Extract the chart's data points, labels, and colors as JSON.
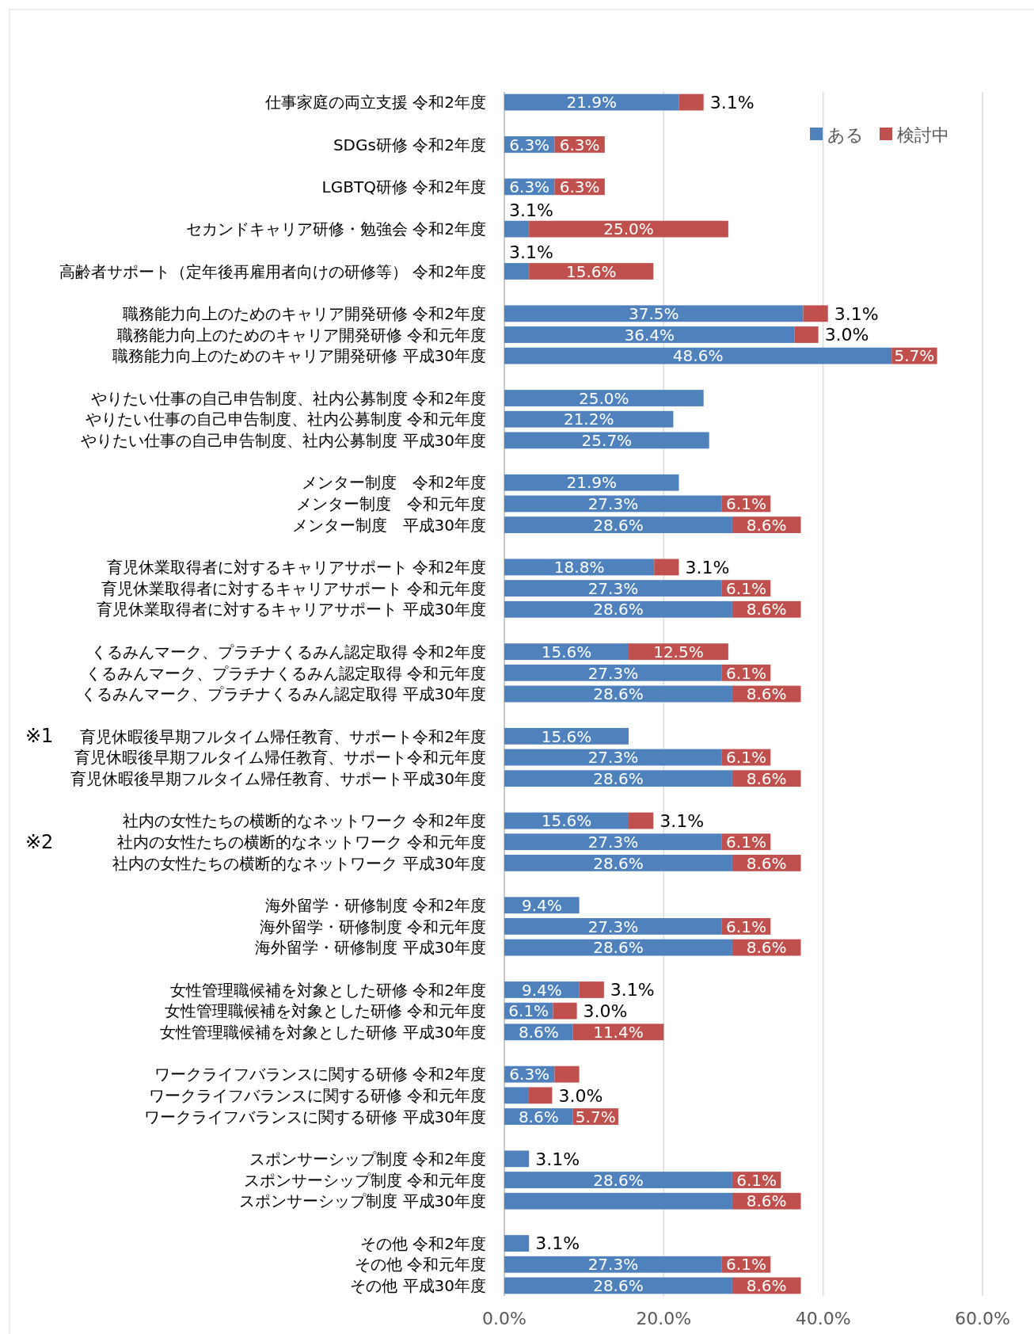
{
  "chart_data": {
    "type": "bar",
    "orientation": "horizontal",
    "stacked": true,
    "categories": [
      "仕事家庭の両立支援 令和2年度",
      null,
      "SDGs研修 令和2年度",
      null,
      "LGBTQ研修 令和2年度",
      null,
      "セカンドキャリア研修・勉強会 令和2年度",
      null,
      "高齢者サポート（定年後再雇用者向けの研修等） 令和2年度",
      null,
      "職務能力向上のためのキャリア開発研修 令和2年度",
      "職務能力向上のためのキャリア開発研修 令和元年度",
      "職務能力向上のためのキャリア開発研修 平成30年度",
      null,
      "やりたい仕事の自己申告制度、社内公募制度 令和2年度",
      "やりたい仕事の自己申告制度、社内公募制度 令和元年度",
      "やりたい仕事の自己申告制度、社内公募制度 平成30年度",
      null,
      "メンター制度　令和2年度",
      "メンター制度　令和元年度",
      "メンター制度　平成30年度",
      null,
      "育児休業取得者に対するキャリアサポート 令和2年度",
      "育児休業取得者に対するキャリアサポート 令和元年度",
      "育児休業取得者に対するキャリアサポート 平成30年度",
      null,
      "くるみんマーク、プラチナくるみん認定取得 令和2年度",
      "くるみんマーク、プラチナくるみん認定取得 令和元年度",
      "くるみんマーク、プラチナくるみん認定取得 平成30年度",
      null,
      "育児休暇後早期フルタイム帰任教育、サポート令和2年度",
      "育児休暇後早期フルタイム帰任教育、サポート令和元年度",
      "育児休暇後早期フルタイム帰任教育、サポート平成30年度",
      null,
      "社内の女性たちの横断的なネットワーク 令和2年度",
      "社内の女性たちの横断的なネットワーク 令和元年度",
      "社内の女性たちの横断的なネットワーク 平成30年度",
      null,
      "海外留学・研修制度 令和2年度",
      "海外留学・研修制度 令和元年度",
      "海外留学・研修制度 平成30年度",
      null,
      "女性管理職候補を対象とした研修 令和2年度",
      "女性管理職候補を対象とした研修 令和元年度",
      "女性管理職候補を対象とした研修 平成30年度",
      null,
      "ワークライフバランスに関する研修 令和2年度",
      "ワークライフバランスに関する研修 令和元年度",
      "ワークライフバランスに関する研修 平成30年度",
      null,
      "スポンサーシップ制度 令和2年度",
      "スポンサーシップ制度 令和元年度",
      "スポンサーシップ制度 平成30年度",
      null,
      "その他 令和2年度",
      "その他 令和元年度",
      "その他 平成30年度"
    ],
    "series": [
      {
        "name": "ある",
        "color": "#4f81bd",
        "values": [
          21.9,
          null,
          6.3,
          null,
          6.3,
          null,
          3.1,
          null,
          3.1,
          null,
          37.5,
          36.4,
          48.6,
          null,
          25.0,
          21.2,
          25.7,
          null,
          21.9,
          27.3,
          28.6,
          null,
          18.8,
          27.3,
          28.6,
          null,
          15.6,
          27.3,
          28.6,
          null,
          15.6,
          27.3,
          28.6,
          null,
          15.6,
          27.3,
          28.6,
          null,
          9.4,
          27.3,
          28.6,
          null,
          9.4,
          6.1,
          8.6,
          null,
          6.3,
          3.0,
          8.6,
          null,
          3.1,
          28.6,
          28.6,
          null,
          3.1,
          27.3,
          28.6
        ],
        "value_labels": [
          "21.9%",
          null,
          "6.3%",
          null,
          "6.3%",
          null,
          "3.1%",
          null,
          "3.1%",
          null,
          "37.5%",
          "36.4%",
          "48.6%",
          null,
          "25.0%",
          "21.2%",
          "25.7%",
          null,
          "21.9%",
          "27.3%",
          "28.6%",
          null,
          "18.8%",
          "27.3%",
          "28.6%",
          null,
          "15.6%",
          "27.3%",
          "28.6%",
          null,
          "15.6%",
          "27.3%",
          "28.6%",
          null,
          "15.6%",
          "27.3%",
          "28.6%",
          null,
          "9.4%",
          "27.3%",
          "28.6%",
          null,
          "9.4%",
          "6.1%",
          "8.6%",
          null,
          "6.3%",
          "3.0%",
          "8.6%",
          null,
          "3.1%",
          "28.6%",
          null,
          null,
          "3.1%",
          "27.3%",
          "28.6%"
        ]
      },
      {
        "name": "検討中",
        "color": "#c0504d",
        "values": [
          3.1,
          null,
          6.3,
          null,
          6.3,
          null,
          25.0,
          null,
          15.6,
          null,
          3.1,
          3.0,
          5.7,
          null,
          null,
          null,
          null,
          null,
          null,
          6.1,
          8.6,
          null,
          3.1,
          6.1,
          8.6,
          null,
          12.5,
          6.1,
          8.6,
          null,
          null,
          6.1,
          8.6,
          null,
          3.1,
          6.1,
          8.6,
          null,
          null,
          6.1,
          8.6,
          null,
          3.1,
          3.0,
          11.4,
          null,
          3.1,
          3.0,
          5.7,
          null,
          null,
          6.1,
          8.6,
          null,
          null,
          6.1,
          8.6
        ],
        "value_labels": [
          "3.1%",
          null,
          "6.3%",
          null,
          "6.3%",
          null,
          "25.0%",
          null,
          "15.6%",
          null,
          "3.1%",
          "3.0%",
          "5.7%",
          null,
          null,
          null,
          null,
          null,
          null,
          "6.1%",
          "8.6%",
          null,
          "3.1%",
          "6.1%",
          "8.6%",
          null,
          "12.5%",
          "6.1%",
          "8.6%",
          null,
          null,
          "6.1%",
          "8.6%",
          null,
          "3.1%",
          "6.1%",
          "8.6%",
          null,
          null,
          "6.1%",
          "8.6%",
          null,
          "3.1%",
          "3.0%",
          "11.4%",
          null,
          null,
          null,
          "5.7%",
          null,
          null,
          "6.1%",
          "8.6%",
          null,
          null,
          "6.1%",
          "8.6%"
        ]
      }
    ],
    "xlim": [
      0,
      60
    ],
    "xticks": [
      {
        "value": 0,
        "label": "0.0%"
      },
      {
        "value": 20,
        "label": "20.0%"
      },
      {
        "value": 40,
        "label": "40.0%"
      },
      {
        "value": 60,
        "label": "60.0%"
      }
    ],
    "grid": "x",
    "legend": "top right",
    "annotations": [
      "※1",
      "※2"
    ]
  }
}
